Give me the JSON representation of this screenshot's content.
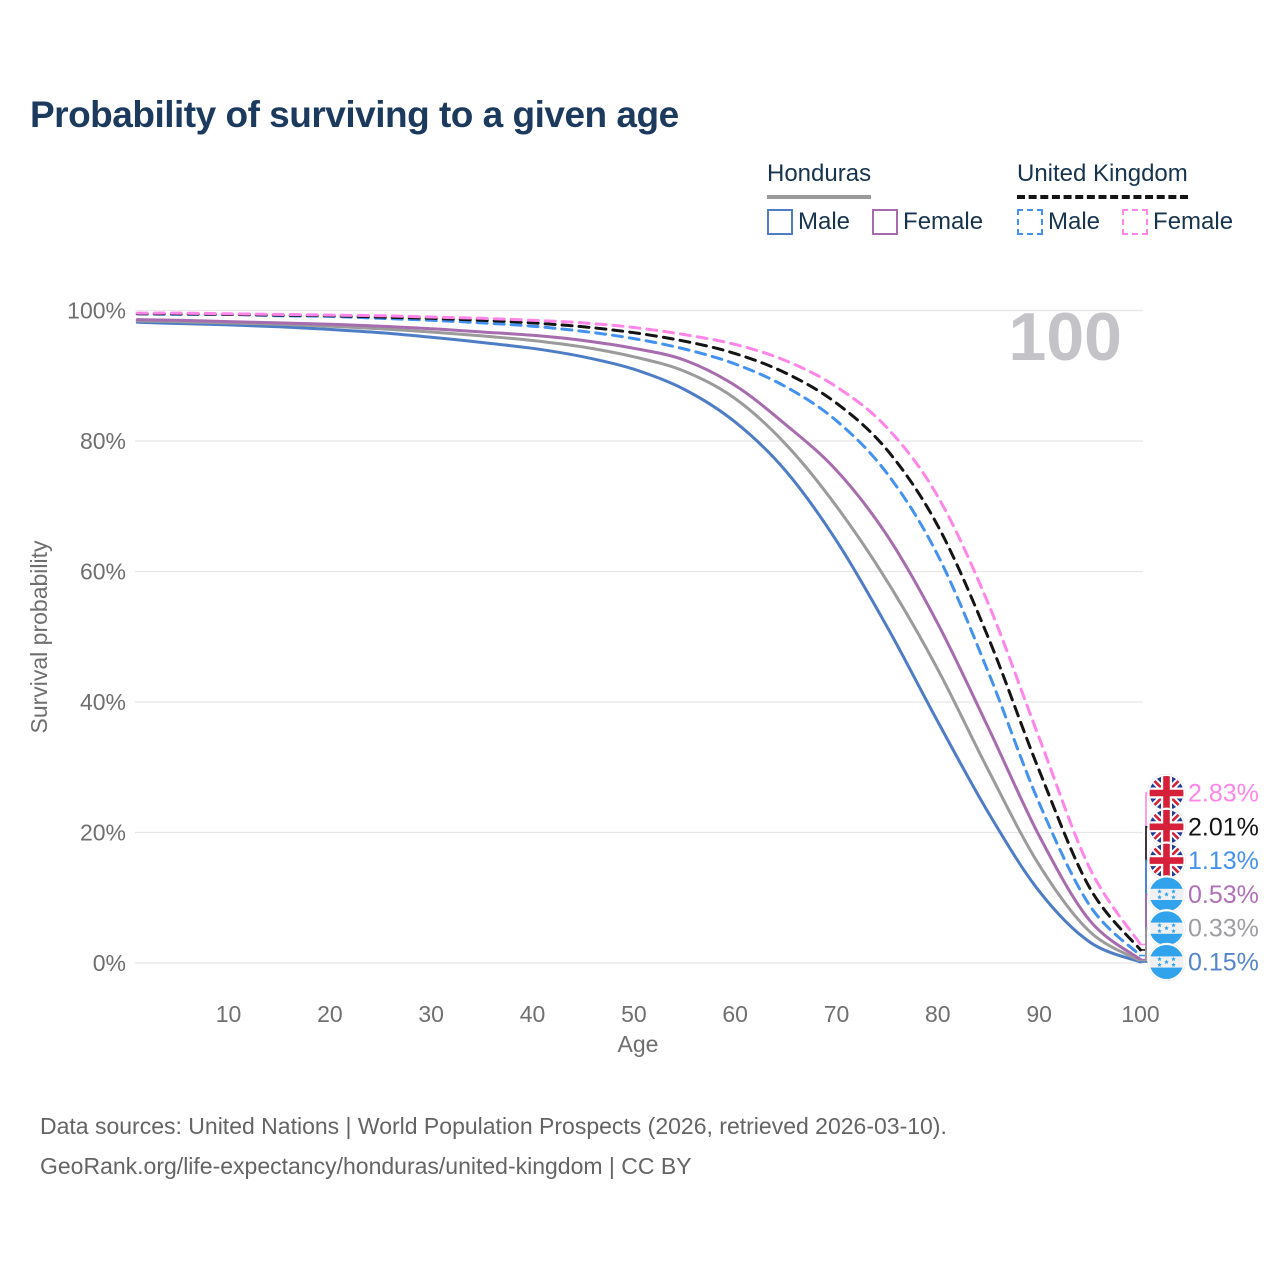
{
  "header": {
    "title": "Probability of surviving to a given age"
  },
  "legend": {
    "honduras": {
      "label": "Honduras",
      "male_label": "Male",
      "female_label": "Female"
    },
    "united_kingdom": {
      "label": "United Kingdom",
      "male_label": "Male",
      "female_label": "Female"
    }
  },
  "colors": {
    "honduras_male": "#4e7dc6",
    "honduras_both": "#9b9b9b",
    "honduras_female": "#a76cae",
    "uk_male": "#4492ef",
    "uk_both": "#141414",
    "uk_female": "#ff85e8",
    "grid": "#e7e7e7",
    "axis_text": "#6f6f6f",
    "title_text": "#1c3a5e",
    "watermark": "#c4c4c8",
    "flag_blue_hn": "#31a2ec",
    "flag_blue_uk": "#253a97",
    "flag_red_uk": "#d62039"
  },
  "chart_data": {
    "type": "line",
    "title": "Probability of surviving to a given age",
    "xlabel": "Age",
    "ylabel": "Survival probability",
    "x_ticks": [
      10,
      20,
      30,
      40,
      50,
      60,
      70,
      80,
      90,
      100
    ],
    "y_ticks_percent": [
      0,
      20,
      40,
      60,
      80,
      100
    ],
    "xlim": [
      1,
      100
    ],
    "ylim_percent": [
      0,
      100
    ],
    "grid": true,
    "legend_position": "top-right",
    "age_annotation": "100",
    "ages": [
      1,
      5,
      10,
      15,
      20,
      25,
      30,
      35,
      40,
      45,
      50,
      55,
      60,
      65,
      70,
      75,
      80,
      85,
      90,
      95,
      100
    ],
    "series": [
      {
        "id": "honduras-male",
        "name": "Honduras Male",
        "style": "solid",
        "color": "#4e7dc6",
        "flag": "hn",
        "end_label": "0.15%",
        "end_label_color": "#5585cf",
        "values": [
          98.2,
          98.0,
          97.8,
          97.5,
          97.1,
          96.6,
          95.9,
          95.1,
          94.2,
          92.9,
          91.0,
          87.9,
          82.9,
          75.4,
          64.7,
          51.5,
          37.0,
          23.0,
          11.0,
          3.2,
          0.15
        ]
      },
      {
        "id": "honduras-both",
        "name": "Honduras Both sexes",
        "style": "solid",
        "color": "#9b9b9b",
        "flag": "hn",
        "end_label": "0.33%",
        "end_label_color": "#9e9ea2",
        "values": [
          98.4,
          98.3,
          98.1,
          97.9,
          97.6,
          97.2,
          96.7,
          96.1,
          95.4,
          94.4,
          92.9,
          90.7,
          86.5,
          79.5,
          70.0,
          58.5,
          45.0,
          29.5,
          15.0,
          4.8,
          0.33
        ]
      },
      {
        "id": "honduras-female",
        "name": "Honduras Female",
        "style": "solid",
        "color": "#a76cae",
        "flag": "hn",
        "end_label": "0.53%",
        "end_label_color": "#b06fb6",
        "values": [
          98.6,
          98.5,
          98.3,
          98.1,
          97.9,
          97.6,
          97.2,
          96.7,
          96.2,
          95.4,
          94.2,
          92.4,
          88.5,
          82.5,
          75.5,
          65.5,
          52.0,
          36.0,
          19.5,
          6.5,
          0.53
        ]
      },
      {
        "id": "uk-male",
        "name": "United Kingdom Male",
        "style": "dashed",
        "color": "#4492ef",
        "flag": "uk",
        "end_label": "1.13%",
        "end_label_color": "#4492ef",
        "values": [
          99.5,
          99.4,
          99.4,
          99.2,
          99.1,
          98.8,
          98.5,
          98.1,
          97.6,
          96.8,
          95.7,
          94.1,
          91.8,
          88.3,
          83.1,
          75.0,
          62.5,
          44.5,
          24.5,
          8.8,
          1.13
        ]
      },
      {
        "id": "uk-both",
        "name": "United Kingdom Both sexes",
        "style": "dashed",
        "color": "#141414",
        "flag": "uk",
        "end_label": "2.01%",
        "end_label_color": "#141414",
        "values": [
          99.5,
          99.5,
          99.4,
          99.3,
          99.2,
          99.0,
          98.8,
          98.5,
          98.1,
          97.5,
          96.6,
          95.3,
          93.4,
          90.4,
          85.8,
          78.6,
          67.0,
          49.8,
          29.5,
          11.5,
          2.01
        ]
      },
      {
        "id": "uk-female",
        "name": "United Kingdom Female",
        "style": "dashed",
        "color": "#ff85e8",
        "flag": "uk",
        "end_label": "2.83%",
        "end_label_color": "#ff85e8",
        "values": [
          99.6,
          99.6,
          99.5,
          99.4,
          99.3,
          99.2,
          99.0,
          98.8,
          98.5,
          98.1,
          97.4,
          96.3,
          94.8,
          92.3,
          88.3,
          82.0,
          71.5,
          55.0,
          34.5,
          14.5,
          2.83
        ]
      }
    ]
  },
  "footer": {
    "line1": "Data sources: United Nations | World Population Prospects (2026, retrieved 2026-03-10).",
    "line2": "GeoRank.org/life-expectancy/honduras/united-kingdom | CC BY"
  }
}
